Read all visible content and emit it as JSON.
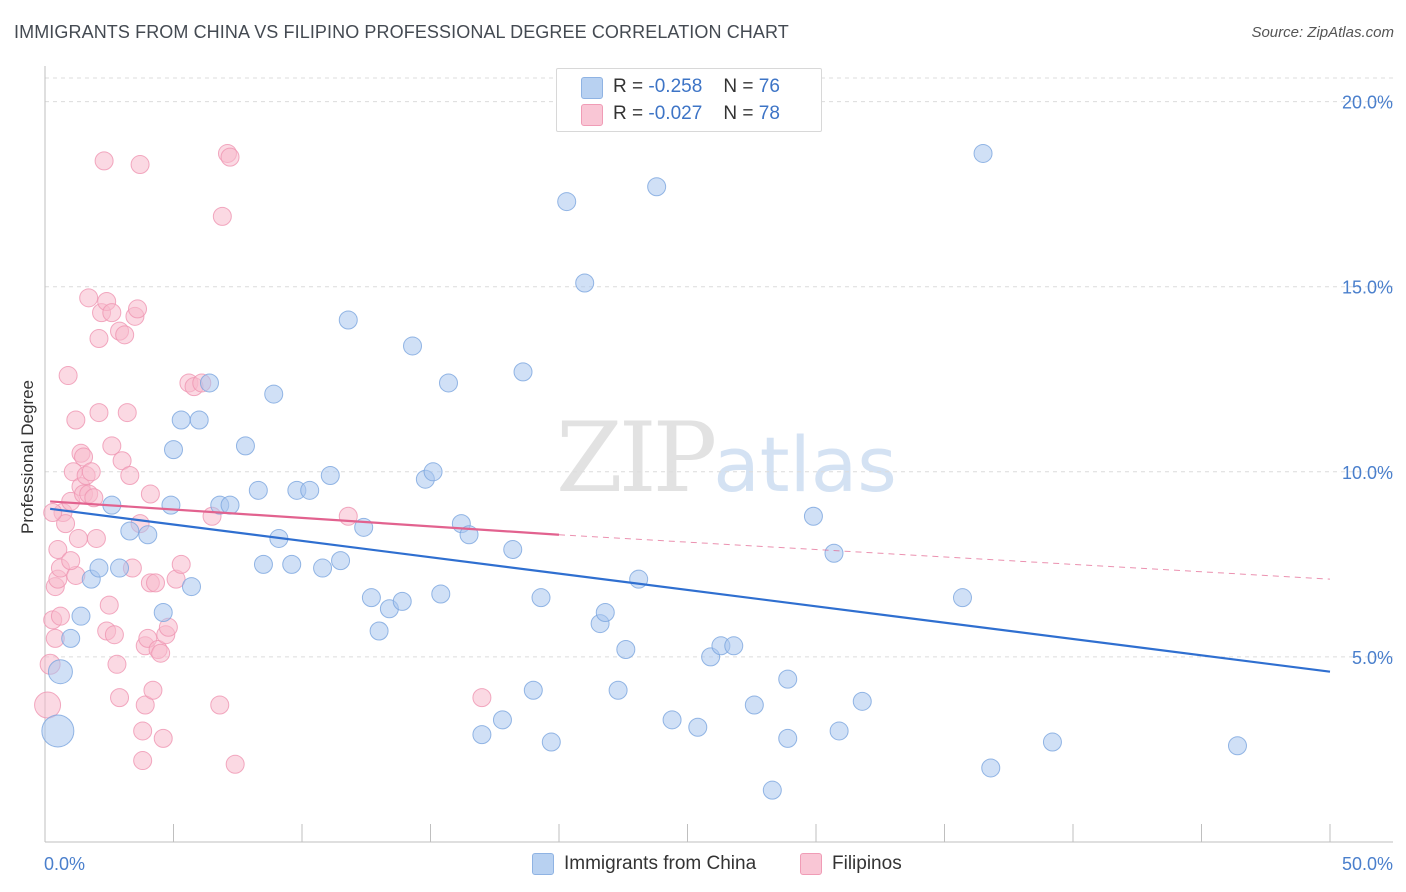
{
  "title": "IMMIGRANTS FROM CHINA VS FILIPINO PROFESSIONAL DEGREE CORRELATION CHART",
  "source": "Source: ZipAtlas.com",
  "watermark": {
    "zip": "ZIP",
    "atlas": "atlas"
  },
  "stats": [
    {
      "r_label": "R =",
      "r_value": "-0.258",
      "n_label": "N =",
      "n_value": "76"
    },
    {
      "r_label": "R =",
      "r_value": "-0.027",
      "n_label": "N =",
      "n_value": "78"
    }
  ],
  "legend": [
    {
      "label": "Immigrants from China"
    },
    {
      "label": "Filipinos"
    }
  ],
  "colors": {
    "china_fill": "#a9c7ee",
    "china_stroke": "#7aa5de",
    "china_line": "#2f6fd0",
    "filipino_fill": "#f7b9cc",
    "filipino_stroke": "#ef95b1",
    "filipino_line": "#e2628f",
    "grid": "#dcdcdc",
    "axis_text": "#4a7fcc"
  },
  "chart_data": {
    "type": "scatter",
    "title": "IMMIGRANTS FROM CHINA VS FILIPINO PROFESSIONAL DEGREE CORRELATION CHART",
    "xlabel": "",
    "ylabel": "Professional Degree",
    "xlim": [
      0,
      50
    ],
    "ylim": [
      0,
      20.8
    ],
    "x_tick_labels": [
      "0.0%",
      "50.0%"
    ],
    "y_ticks": [
      5,
      10,
      15,
      20
    ],
    "y_tick_labels": [
      "5.0%",
      "10.0%",
      "15.0%",
      "20.0%"
    ],
    "grid": true,
    "legend_position": "bottom-center",
    "series": [
      {
        "name": "Immigrants from China",
        "r": -0.258,
        "n": 76,
        "trend": {
          "x0": 0.2,
          "y0": 9.0,
          "x1": 50.0,
          "y1": 4.6
        },
        "points": [
          [
            0.5,
            3.0,
            16
          ],
          [
            0.6,
            4.6,
            12
          ],
          [
            1.0,
            5.5,
            9
          ],
          [
            1.4,
            6.1,
            9
          ],
          [
            1.8,
            7.1,
            9
          ],
          [
            2.1,
            7.4,
            9
          ],
          [
            2.6,
            9.1,
            9
          ],
          [
            2.9,
            7.4,
            9
          ],
          [
            3.3,
            8.4,
            9
          ],
          [
            4.0,
            8.3,
            9
          ],
          [
            4.6,
            6.2,
            9
          ],
          [
            4.9,
            9.1,
            9
          ],
          [
            5.0,
            10.6,
            9
          ],
          [
            5.3,
            11.4,
            9
          ],
          [
            5.7,
            6.9,
            9
          ],
          [
            6.0,
            11.4,
            9
          ],
          [
            6.4,
            12.4,
            9
          ],
          [
            6.8,
            9.1,
            9
          ],
          [
            7.2,
            9.1,
            9
          ],
          [
            7.8,
            10.7,
            9
          ],
          [
            8.3,
            9.5,
            9
          ],
          [
            8.5,
            7.5,
            9
          ],
          [
            8.9,
            12.1,
            9
          ],
          [
            9.1,
            8.2,
            9
          ],
          [
            9.6,
            7.5,
            9
          ],
          [
            9.8,
            9.5,
            9
          ],
          [
            10.3,
            9.5,
            9
          ],
          [
            10.8,
            7.4,
            9
          ],
          [
            11.1,
            9.9,
            9
          ],
          [
            11.5,
            7.6,
            9
          ],
          [
            11.8,
            14.1,
            9
          ],
          [
            12.4,
            8.5,
            9
          ],
          [
            12.7,
            6.6,
            9
          ],
          [
            13.0,
            5.7,
            9
          ],
          [
            13.4,
            6.3,
            9
          ],
          [
            13.9,
            6.5,
            9
          ],
          [
            14.3,
            13.4,
            9
          ],
          [
            14.8,
            9.8,
            9
          ],
          [
            15.1,
            10.0,
            9
          ],
          [
            15.4,
            6.7,
            9
          ],
          [
            15.7,
            12.4,
            9
          ],
          [
            16.2,
            8.6,
            9
          ],
          [
            16.5,
            8.3,
            9
          ],
          [
            17.0,
            2.9,
            9
          ],
          [
            17.8,
            3.3,
            9
          ],
          [
            18.2,
            7.9,
            9
          ],
          [
            18.6,
            12.7,
            9
          ],
          [
            19.0,
            4.1,
            9
          ],
          [
            19.3,
            6.6,
            9
          ],
          [
            19.7,
            2.7,
            9
          ],
          [
            20.3,
            17.3,
            9
          ],
          [
            21.0,
            15.1,
            9
          ],
          [
            21.6,
            5.9,
            9
          ],
          [
            21.8,
            6.2,
            9
          ],
          [
            22.3,
            4.1,
            9
          ],
          [
            22.6,
            5.2,
            9
          ],
          [
            23.1,
            7.1,
            9
          ],
          [
            23.8,
            17.7,
            9
          ],
          [
            24.4,
            3.3,
            9
          ],
          [
            25.4,
            3.1,
            9
          ],
          [
            25.9,
            5.0,
            9
          ],
          [
            26.3,
            5.3,
            9
          ],
          [
            26.8,
            5.3,
            9
          ],
          [
            27.6,
            3.7,
            9
          ],
          [
            28.3,
            1.4,
            9
          ],
          [
            28.9,
            4.4,
            9
          ],
          [
            28.9,
            2.8,
            9
          ],
          [
            29.9,
            8.8,
            9
          ],
          [
            30.7,
            7.8,
            9
          ],
          [
            30.9,
            3.0,
            9
          ],
          [
            31.8,
            3.8,
            9
          ],
          [
            35.7,
            6.6,
            9
          ],
          [
            36.5,
            18.6,
            9
          ],
          [
            36.8,
            2.0,
            9
          ],
          [
            39.2,
            2.7,
            9
          ],
          [
            46.4,
            2.6,
            9
          ]
        ]
      },
      {
        "name": "Filipinos",
        "r": -0.027,
        "n": 78,
        "trend": {
          "x0": 0.2,
          "y0": 9.2,
          "x1": 20.0,
          "y1": 8.3
        },
        "trend_extension": {
          "x0": 20.0,
          "y0": 8.3,
          "x1": 50.0,
          "y1": 7.1
        },
        "points": [
          [
            0.1,
            3.7,
            13
          ],
          [
            0.2,
            4.8,
            10
          ],
          [
            0.3,
            6.0,
            9
          ],
          [
            0.4,
            5.5,
            9
          ],
          [
            0.4,
            6.9,
            9
          ],
          [
            0.5,
            7.1,
            9
          ],
          [
            0.5,
            7.9,
            9
          ],
          [
            0.6,
            7.4,
            9
          ],
          [
            0.7,
            8.9,
            9
          ],
          [
            0.8,
            8.6,
            9
          ],
          [
            0.9,
            12.6,
            9
          ],
          [
            1.0,
            9.2,
            9
          ],
          [
            1.1,
            10.0,
            9
          ],
          [
            1.2,
            7.2,
            9
          ],
          [
            1.2,
            11.4,
            9
          ],
          [
            1.3,
            8.2,
            9
          ],
          [
            1.4,
            9.6,
            9
          ],
          [
            1.4,
            10.5,
            9
          ],
          [
            1.5,
            9.4,
            9
          ],
          [
            1.5,
            10.4,
            9
          ],
          [
            1.6,
            9.9,
            9
          ],
          [
            1.7,
            14.7,
            9
          ],
          [
            1.7,
            9.4,
            9
          ],
          [
            1.8,
            10.0,
            9
          ],
          [
            1.9,
            9.3,
            9
          ],
          [
            2.0,
            8.2,
            9
          ],
          [
            2.1,
            11.6,
            9
          ],
          [
            2.1,
            13.6,
            9
          ],
          [
            2.2,
            14.3,
            9
          ],
          [
            2.3,
            18.4,
            9
          ],
          [
            2.4,
            5.7,
            9
          ],
          [
            2.4,
            14.6,
            9
          ],
          [
            2.5,
            6.4,
            9
          ],
          [
            2.6,
            14.3,
            9
          ],
          [
            2.6,
            10.7,
            9
          ],
          [
            2.7,
            5.6,
            9
          ],
          [
            2.8,
            4.8,
            9
          ],
          [
            2.9,
            3.9,
            9
          ],
          [
            2.9,
            13.8,
            9
          ],
          [
            3.0,
            10.3,
            9
          ],
          [
            3.1,
            13.7,
            9
          ],
          [
            3.2,
            11.6,
            9
          ],
          [
            3.3,
            9.9,
            9
          ],
          [
            3.4,
            7.4,
            9
          ],
          [
            3.5,
            14.2,
            9
          ],
          [
            3.6,
            14.4,
            9
          ],
          [
            3.7,
            18.3,
            9
          ],
          [
            3.7,
            8.6,
            9
          ],
          [
            3.8,
            2.2,
            9
          ],
          [
            3.8,
            3.0,
            9
          ],
          [
            3.9,
            5.3,
            9
          ],
          [
            3.9,
            3.7,
            9
          ],
          [
            4.0,
            5.5,
            9
          ],
          [
            4.1,
            7.0,
            9
          ],
          [
            4.1,
            9.4,
            9
          ],
          [
            4.2,
            4.1,
            9
          ],
          [
            4.3,
            7.0,
            9
          ],
          [
            4.4,
            5.2,
            9
          ],
          [
            4.5,
            5.1,
            9
          ],
          [
            4.6,
            2.8,
            9
          ],
          [
            4.7,
            5.6,
            9
          ],
          [
            4.8,
            5.8,
            9
          ],
          [
            5.1,
            7.1,
            9
          ],
          [
            5.3,
            7.5,
            9
          ],
          [
            5.6,
            12.4,
            9
          ],
          [
            5.8,
            12.3,
            9
          ],
          [
            6.1,
            12.4,
            9
          ],
          [
            6.5,
            8.8,
            9
          ],
          [
            6.8,
            3.7,
            9
          ],
          [
            6.9,
            16.9,
            9
          ],
          [
            7.1,
            18.6,
            9
          ],
          [
            7.2,
            18.5,
            9
          ],
          [
            7.4,
            2.1,
            9
          ],
          [
            11.8,
            8.8,
            9
          ],
          [
            17.0,
            3.9,
            9
          ],
          [
            0.3,
            8.9,
            9
          ],
          [
            0.6,
            6.1,
            9
          ],
          [
            1.0,
            7.6,
            9
          ]
        ]
      }
    ]
  }
}
